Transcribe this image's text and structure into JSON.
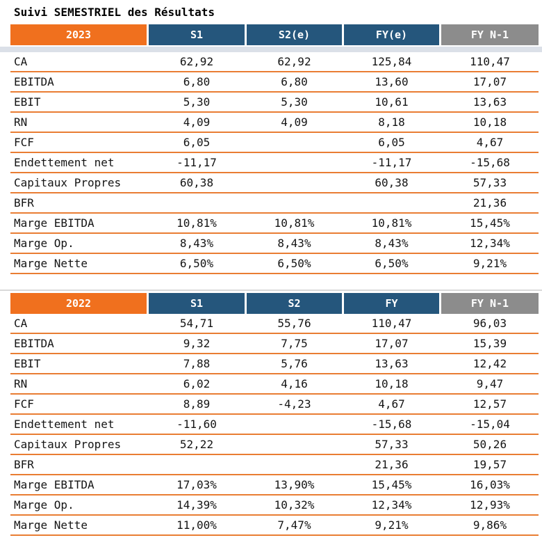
{
  "title": "Suivi SEMESTRIEL des Résultats",
  "colors": {
    "orange": "#F0701E",
    "blue": "#25567C",
    "gray": "#8C8C8C",
    "line": "#E97D33",
    "band": "#DBE0E8",
    "topline": "#D9D9D9"
  },
  "chart_data": [
    {
      "type": "table",
      "year": "2023",
      "columns": [
        "S1",
        "S2(e)",
        "FY(e)",
        "FY N-1"
      ],
      "rows": [
        {
          "label": "CA",
          "values": [
            "62,92",
            "62,92",
            "125,84",
            "110,47"
          ]
        },
        {
          "label": "EBITDA",
          "values": [
            "6,80",
            "6,80",
            "13,60",
            "17,07"
          ]
        },
        {
          "label": "EBIT",
          "values": [
            "5,30",
            "5,30",
            "10,61",
            "13,63"
          ]
        },
        {
          "label": "RN",
          "values": [
            "4,09",
            "4,09",
            "8,18",
            "10,18"
          ]
        },
        {
          "label": "FCF",
          "values": [
            "6,05",
            "",
            "6,05",
            "4,67"
          ]
        },
        {
          "label": "Endettement net",
          "values": [
            "-11,17",
            "",
            "-11,17",
            "-15,68"
          ]
        },
        {
          "label": "Capitaux Propres",
          "values": [
            "60,38",
            "",
            "60,38",
            "57,33"
          ]
        },
        {
          "label": "BFR",
          "values": [
            "",
            "",
            "",
            "21,36"
          ]
        },
        {
          "label": "Marge EBITDA",
          "values": [
            "10,81%",
            "10,81%",
            "10,81%",
            "15,45%"
          ]
        },
        {
          "label": "Marge Op.",
          "values": [
            "8,43%",
            "8,43%",
            "8,43%",
            "12,34%"
          ]
        },
        {
          "label": "Marge Nette",
          "values": [
            "6,50%",
            "6,50%",
            "6,50%",
            "9,21%"
          ]
        }
      ]
    },
    {
      "type": "table",
      "year": "2022",
      "columns": [
        "S1",
        "S2",
        "FY",
        "FY N-1"
      ],
      "rows": [
        {
          "label": "CA",
          "values": [
            "54,71",
            "55,76",
            "110,47",
            "96,03"
          ]
        },
        {
          "label": "EBITDA",
          "values": [
            "9,32",
            "7,75",
            "17,07",
            "15,39"
          ]
        },
        {
          "label": "EBIT",
          "values": [
            "7,88",
            "5,76",
            "13,63",
            "12,42"
          ]
        },
        {
          "label": "RN",
          "values": [
            "6,02",
            "4,16",
            "10,18",
            "9,47"
          ]
        },
        {
          "label": "FCF",
          "values": [
            "8,89",
            "-4,23",
            "4,67",
            "12,57"
          ]
        },
        {
          "label": "Endettement net",
          "values": [
            "-11,60",
            "",
            "-15,68",
            "-15,04"
          ]
        },
        {
          "label": "Capitaux Propres",
          "values": [
            "52,22",
            "",
            "57,33",
            "50,26"
          ]
        },
        {
          "label": "BFR",
          "values": [
            "",
            "",
            "21,36",
            "19,57"
          ]
        },
        {
          "label": "Marge EBITDA",
          "values": [
            "17,03%",
            "13,90%",
            "15,45%",
            "16,03%"
          ]
        },
        {
          "label": "Marge Op.",
          "values": [
            "14,39%",
            "10,32%",
            "12,34%",
            "12,93%"
          ]
        },
        {
          "label": "Marge Nette",
          "values": [
            "11,00%",
            "7,47%",
            "9,21%",
            "9,86%"
          ]
        }
      ]
    }
  ]
}
